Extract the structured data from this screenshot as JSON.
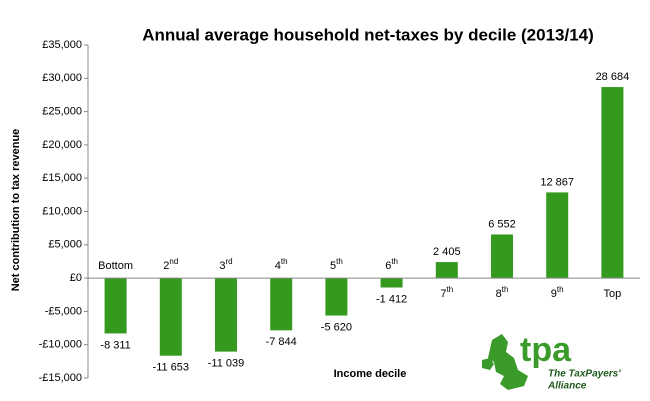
{
  "chart_data": {
    "type": "bar",
    "title": "Annual average household net-taxes by decile (2013/14)",
    "x_label": "Income decile",
    "y_label": "Net contribution to tax revenue",
    "categories": [
      "Bottom",
      "2nd",
      "3rd",
      "4th",
      "5th",
      "6th",
      "7th",
      "8th",
      "9th",
      "Top"
    ],
    "values": [
      -8311,
      -11653,
      -11039,
      -7844,
      -5620,
      -1412,
      2405,
      6552,
      12867,
      28684
    ],
    "value_labels": [
      "-8 311",
      "-11 653",
      "-11 039",
      "-7 844",
      "-5 620",
      "-1 412",
      "2 405",
      "6 552",
      "12 867",
      "28 684"
    ],
    "color": "#349a1e",
    "ylim": [
      -15000,
      35000
    ],
    "yticks": [
      {
        "value": -15000,
        "label": "-£15,000"
      },
      {
        "value": -10000,
        "label": "-£10,000"
      },
      {
        "value": -5000,
        "label": "-£5,000"
      },
      {
        "value": 0,
        "label": "£0"
      },
      {
        "value": 5000,
        "label": "£5,000"
      },
      {
        "value": 10000,
        "label": "£10,000"
      },
      {
        "value": 15000,
        "label": "£15,000"
      },
      {
        "value": 20000,
        "label": "£20,000"
      },
      {
        "value": 25000,
        "label": "£25,000"
      },
      {
        "value": 30000,
        "label": "£30,000"
      },
      {
        "value": 35000,
        "label": "£35,000"
      }
    ],
    "grid": false
  },
  "logo": {
    "text": "tpa",
    "tagline": [
      "The TaxPayers'",
      "Alliance"
    ]
  }
}
